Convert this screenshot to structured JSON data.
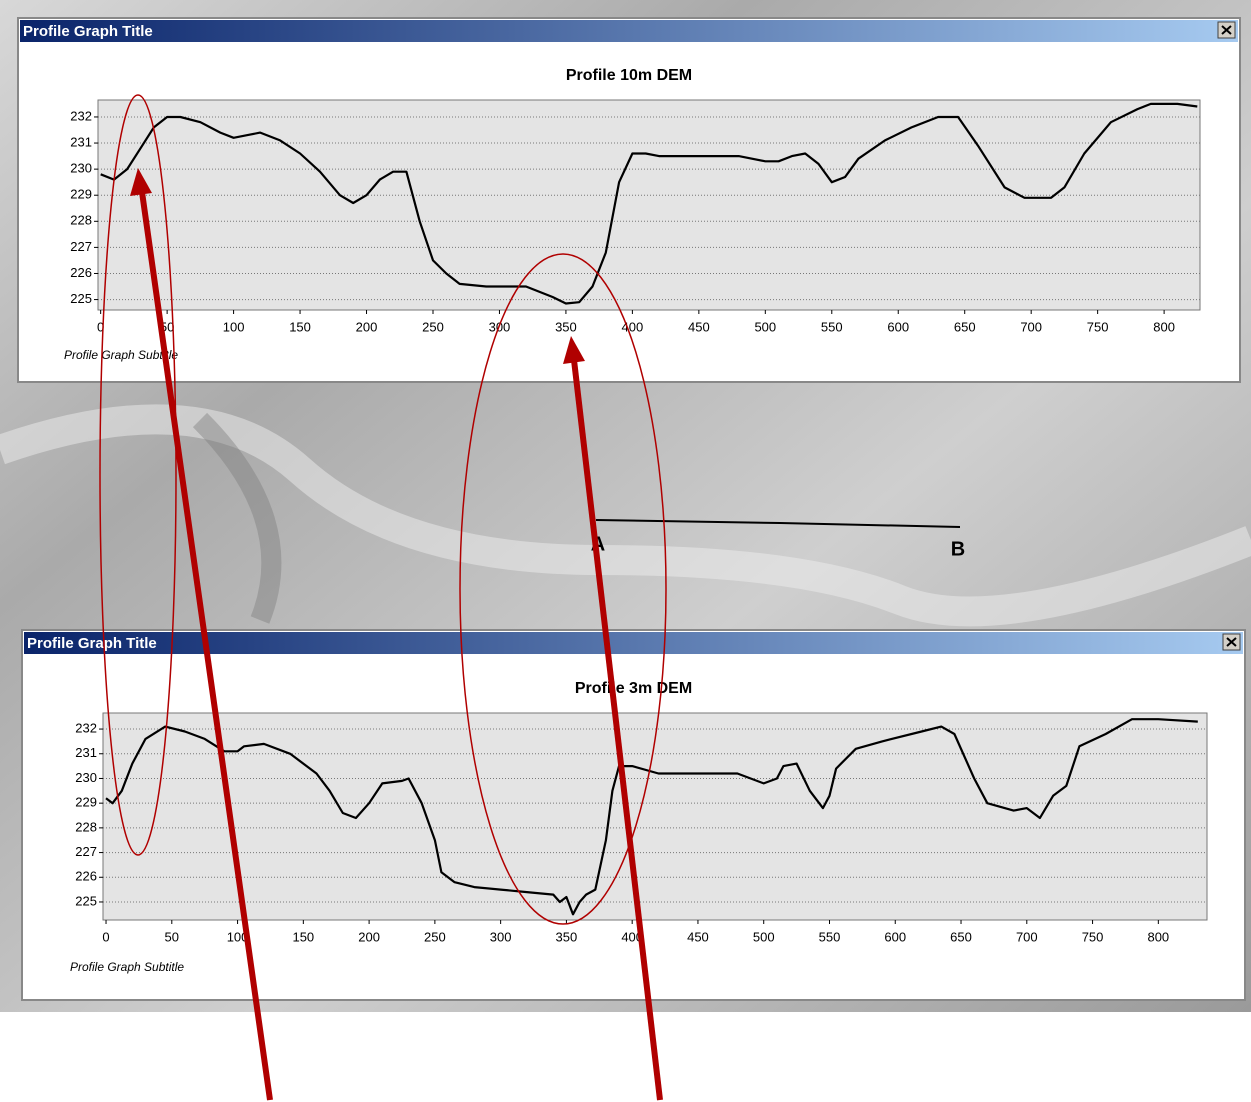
{
  "map_labels": [
    "A",
    "B"
  ],
  "chart_data": [
    {
      "type": "line",
      "window_title": "Profile Graph Title",
      "title": "Profile 10m DEM",
      "subtitle": "Profile Graph Subtitle",
      "color": "#000000",
      "grid": true,
      "x": [
        0,
        10,
        20,
        30,
        40,
        50,
        60,
        75,
        90,
        100,
        110,
        120,
        135,
        150,
        165,
        180,
        190,
        200,
        210,
        220,
        230,
        240,
        250,
        260,
        270,
        290,
        320,
        340,
        350,
        360,
        370,
        380,
        390,
        400,
        410,
        420,
        450,
        480,
        500,
        510,
        520,
        530,
        540,
        550,
        560,
        570,
        590,
        610,
        630,
        645,
        660,
        680,
        695,
        715,
        725,
        740,
        760,
        780,
        790,
        810,
        825
      ],
      "values": [
        229.8,
        229.6,
        230.0,
        230.8,
        231.6,
        232.0,
        232.0,
        231.8,
        231.4,
        231.2,
        231.3,
        231.4,
        231.1,
        230.6,
        229.9,
        229.0,
        228.7,
        229.0,
        229.6,
        229.9,
        229.9,
        228.0,
        226.5,
        226.0,
        225.6,
        225.5,
        225.5,
        225.1,
        224.85,
        224.9,
        225.5,
        226.8,
        229.5,
        230.6,
        230.6,
        230.5,
        230.5,
        230.5,
        230.3,
        230.3,
        230.5,
        230.6,
        230.2,
        229.5,
        229.7,
        230.4,
        231.1,
        231.6,
        232.0,
        232.0,
        230.9,
        229.3,
        228.9,
        228.9,
        229.3,
        230.6,
        231.8,
        232.3,
        232.5,
        232.5,
        232.4
      ],
      "xlim": [
        -2,
        827
      ],
      "ylim": [
        224.6,
        232.65
      ],
      "xticks": [
        0,
        50,
        100,
        150,
        200,
        250,
        300,
        350,
        400,
        450,
        500,
        550,
        600,
        650,
        700,
        750,
        800
      ],
      "yticks": [
        225,
        226,
        227,
        228,
        229,
        230,
        231,
        232
      ]
    },
    {
      "type": "line",
      "window_title": "Profile Graph Title",
      "title": "Profile 3m DEM",
      "subtitle": "Profile Graph Subtitle",
      "color": "#000000",
      "grid": true,
      "x": [
        0,
        5,
        12,
        20,
        30,
        45,
        60,
        75,
        90,
        100,
        105,
        120,
        140,
        160,
        170,
        180,
        190,
        200,
        210,
        225,
        230,
        240,
        250,
        255,
        265,
        280,
        300,
        320,
        340,
        345,
        350,
        355,
        360,
        365,
        372,
        380,
        385,
        390,
        400,
        420,
        480,
        500,
        510,
        515,
        525,
        535,
        545,
        550,
        555,
        570,
        590,
        620,
        635,
        645,
        660,
        670,
        690,
        700,
        710,
        720,
        730,
        740,
        760,
        780,
        800,
        830
      ],
      "values": [
        229.2,
        229.0,
        229.5,
        230.6,
        231.6,
        232.1,
        231.9,
        231.6,
        231.1,
        231.1,
        231.3,
        231.4,
        231.0,
        230.2,
        229.5,
        228.6,
        228.4,
        229.0,
        229.8,
        229.9,
        230.0,
        229.0,
        227.5,
        226.2,
        225.8,
        225.6,
        225.5,
        225.4,
        225.3,
        225.0,
        225.2,
        224.5,
        225.0,
        225.3,
        225.5,
        227.5,
        229.5,
        230.5,
        230.5,
        230.2,
        230.2,
        229.8,
        230.0,
        230.5,
        230.6,
        229.5,
        228.8,
        229.3,
        230.4,
        231.2,
        231.5,
        231.9,
        232.1,
        231.8,
        230.0,
        229.0,
        228.7,
        228.8,
        228.4,
        229.3,
        229.7,
        231.3,
        231.8,
        232.4,
        232.4,
        232.3
      ],
      "xlim": [
        -2.3,
        837
      ],
      "ylim": [
        224.27,
        232.65
      ],
      "xticks": [
        0,
        50,
        100,
        150,
        200,
        250,
        300,
        350,
        400,
        450,
        500,
        550,
        600,
        650,
        700,
        750,
        800
      ],
      "yticks": [
        225,
        226,
        227,
        228,
        229,
        230,
        231,
        232
      ]
    }
  ]
}
